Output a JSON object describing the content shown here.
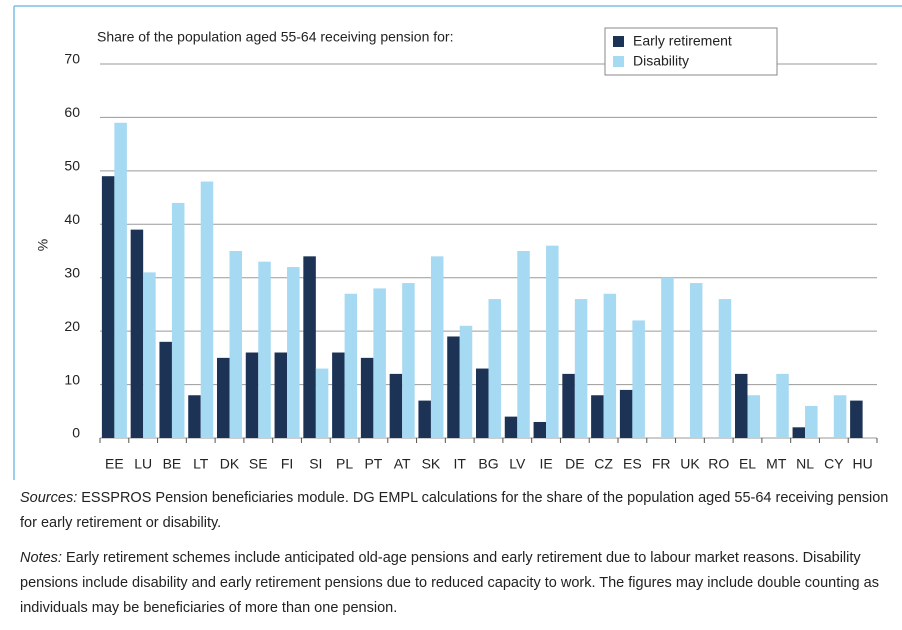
{
  "chart_data": {
    "type": "bar",
    "title": "Share of the population aged 55-64 receiving pension for:",
    "y_label": "%",
    "categories": [
      "EE",
      "LU",
      "BE",
      "LT",
      "DK",
      "SE",
      "FI",
      "SI",
      "PL",
      "PT",
      "AT",
      "SK",
      "IT",
      "BG",
      "LV",
      "IE",
      "DE",
      "CZ",
      "ES",
      "FR",
      "UK",
      "RO",
      "EL",
      "MT",
      "NL",
      "CY",
      "HU"
    ],
    "series": [
      {
        "name": "Early retirement",
        "color": "#1c3356",
        "values": [
          49,
          39,
          18,
          8,
          15,
          16,
          16,
          34,
          16,
          15,
          12,
          7,
          19,
          13,
          4,
          3,
          12,
          8,
          9,
          0,
          0,
          0,
          12,
          0,
          2,
          0,
          7
        ]
      },
      {
        "name": "Disability",
        "color": "#a6d9f2",
        "values": [
          59,
          31,
          44,
          48,
          35,
          33,
          32,
          13,
          27,
          28,
          29,
          34,
          21,
          26,
          35,
          36,
          26,
          27,
          22,
          30,
          29,
          26,
          8,
          12,
          6,
          8,
          0
        ]
      }
    ],
    "ylim": [
      0,
      70
    ],
    "yticks": [
      0,
      10,
      20,
      30,
      40,
      50,
      60,
      70
    ],
    "grid": true,
    "legend": "top-right"
  },
  "footer": {
    "sources_label": "Sources:",
    "sources_text": "ESSPROS Pension beneficiaries module. DG EMPL calculations for the share of the population aged 55-64 receiving pension for early retirement or disability.",
    "notes_label": "Notes:",
    "notes_text": "Early retirement schemes include anticipated old-age pensions and early retirement due to labour market reasons. Disability pensions include disability and early retirement pensions due to reduced capacity to work. The figures may include double counting as individuals may be beneficiaries of more than one pension."
  }
}
